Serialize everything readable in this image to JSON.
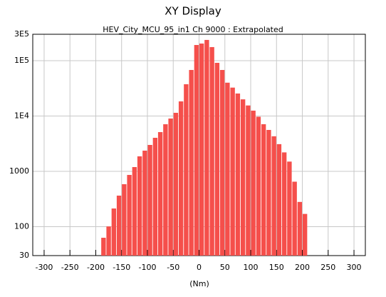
{
  "chart_data": {
    "type": "histogram",
    "title": "XY Display",
    "subtitle": "HEV_City_MCU_95_in1  Ch 9000 : Extrapolated",
    "x_label": "(Nm)",
    "bins": [
      -190,
      -180,
      -170,
      -160,
      -150,
      -140,
      -130,
      -120,
      -110,
      -100,
      -90,
      -80,
      -70,
      -60,
      -50,
      -40,
      -30,
      -20,
      -10,
      0,
      10,
      20,
      30,
      40,
      50,
      60,
      70,
      80,
      90,
      100,
      110,
      120,
      130,
      140,
      150,
      160,
      170,
      180,
      190,
      200,
      210
    ],
    "values": [
      63,
      101,
      213,
      364,
      585,
      861,
      1194,
      1866,
      2366,
      3000,
      4036,
      5117,
      7096,
      8995,
      11420,
      18370,
      37500,
      67900,
      192000,
      204000,
      237000,
      176000,
      91400,
      67900,
      40000,
      32600,
      25500,
      20000,
      15500,
      12500,
      9700,
      7100,
      5600,
      4300,
      3100,
      2200,
      1500,
      650,
      280,
      170
    ],
    "color": "#f54f4b",
    "xlim": [
      -322,
      322
    ],
    "xticks": [
      -300,
      -250,
      -200,
      -150,
      -100,
      -50,
      0,
      50,
      100,
      150,
      200,
      250,
      300
    ],
    "ylim": [
      30,
      300000
    ],
    "yticks": [
      30,
      100,
      1000,
      {
        "value": 10000,
        "label": "1E4"
      },
      {
        "value": 100000,
        "label": "1E5"
      },
      {
        "value": 300000,
        "label": "3E5"
      }
    ],
    "log_y": true,
    "grid": true
  }
}
